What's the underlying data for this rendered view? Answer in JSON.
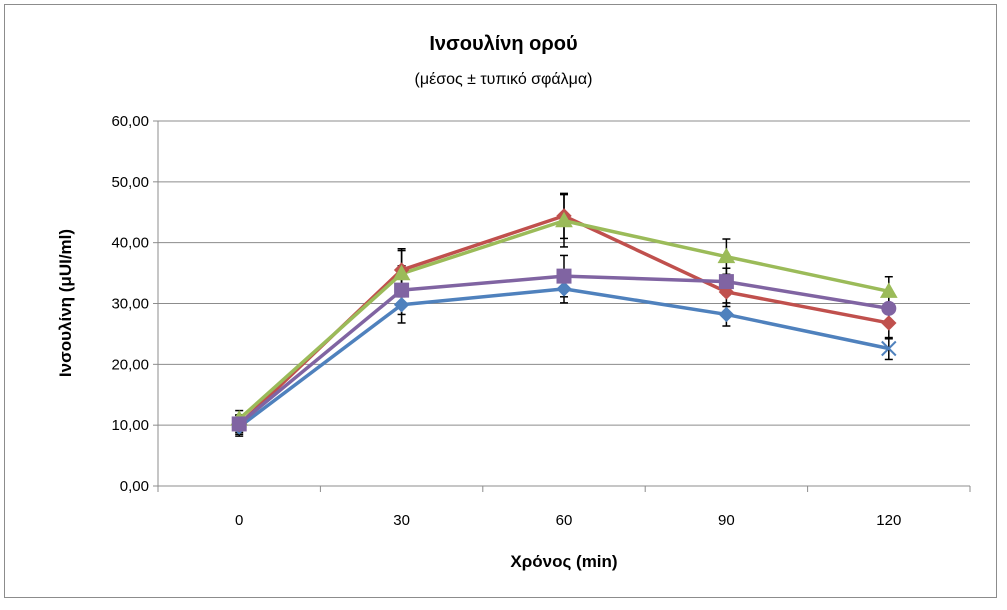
{
  "chart_data": {
    "type": "line",
    "title": "Ινσουλίνη ορού",
    "subtitle": "(μέσος ± τυπικό σφάλμα)",
    "xlabel": "Χρόνος (min)",
    "ylabel": "Ινσουλίνη (μUI/ml)",
    "categories": [
      "0",
      "30",
      "60",
      "90",
      "120"
    ],
    "ylim": [
      0,
      60
    ],
    "yticks": [
      "0,00",
      "10,00",
      "20,00",
      "30,00",
      "40,00",
      "50,00",
      "60,00"
    ],
    "grid": "horizontal",
    "legend": "none",
    "series": [
      {
        "color": "#4f81bd",
        "marker": "diamond",
        "end_marker": "x",
        "values": [
          9.7,
          29.8,
          32.4,
          28.2,
          22.6
        ],
        "errors": [
          1.5,
          3.0,
          2.3,
          1.9,
          1.8
        ]
      },
      {
        "color": "#c0504d",
        "marker": "diamond",
        "values": [
          10.1,
          35.5,
          44.4,
          31.9,
          26.8
        ],
        "errors": [
          1.6,
          3.5,
          3.7,
          2.4,
          2.6
        ]
      },
      {
        "color": "#9bbb59",
        "marker": "triangle",
        "values": [
          11.0,
          34.9,
          43.6,
          37.7,
          32.0
        ],
        "errors": [
          1.4,
          3.8,
          4.3,
          2.9,
          2.4
        ]
      },
      {
        "color": "#8064a2",
        "marker": "square",
        "end_marker": "circle",
        "values": [
          10.2,
          32.2,
          34.5,
          33.6,
          29.2
        ],
        "errors": [
          1.4,
          4.0,
          3.4,
          2.2,
          2.0
        ]
      }
    ]
  }
}
